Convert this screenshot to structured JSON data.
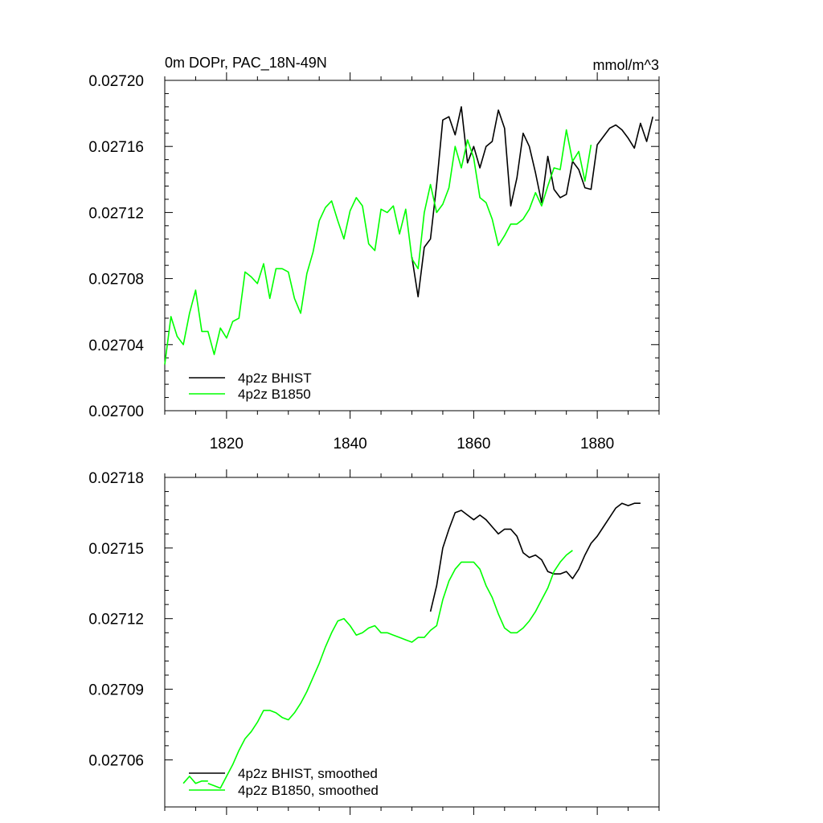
{
  "chart_data": [
    {
      "type": "line",
      "title": "0m DOPr, PAC_18N-49N",
      "units": "mmol/m^3",
      "xlim": [
        1810,
        1890
      ],
      "ylim": [
        0.027,
        0.0272
      ],
      "xticks": [
        1820,
        1840,
        1860,
        1880
      ],
      "xtick_labels": [
        "1820",
        "1840",
        "1860",
        "1880"
      ],
      "yticks": [
        0.027,
        0.02704,
        0.02708,
        0.02712,
        0.02716,
        0.0272
      ],
      "ytick_labels": [
        "0.02700",
        "0.02704",
        "0.02708",
        "0.02712",
        "0.02716",
        "0.02720"
      ],
      "legend_position": "bottom-left",
      "series": [
        {
          "name": "4p2z BHIST",
          "color": "#000000",
          "x": [
            1850,
            1851,
            1852,
            1853,
            1854,
            1855,
            1856,
            1857,
            1858,
            1859,
            1860,
            1861,
            1862,
            1863,
            1864,
            1865,
            1866,
            1867,
            1868,
            1869,
            1870,
            1871,
            1872,
            1873,
            1874,
            1875,
            1876,
            1877,
            1878,
            1879,
            1880,
            1881,
            1882,
            1883,
            1884,
            1885,
            1886,
            1887,
            1888,
            1889
          ],
          "y": [
            0.027093,
            0.027069,
            0.027099,
            0.027104,
            0.027137,
            0.027176,
            0.027178,
            0.027167,
            0.027184,
            0.02715,
            0.02716,
            0.027147,
            0.02716,
            0.027163,
            0.027182,
            0.027171,
            0.027124,
            0.027141,
            0.027168,
            0.02716,
            0.027144,
            0.027126,
            0.027154,
            0.027134,
            0.027129,
            0.027131,
            0.027151,
            0.027146,
            0.027135,
            0.027134,
            0.027161,
            0.027166,
            0.027171,
            0.027173,
            0.02717,
            0.027165,
            0.027159,
            0.027174,
            0.027163,
            0.027178
          ]
        },
        {
          "name": "4p2z B1850",
          "color": "#00ff00",
          "x": [
            1810,
            1811,
            1812,
            1813,
            1814,
            1815,
            1816,
            1817,
            1818,
            1819,
            1820,
            1821,
            1822,
            1823,
            1824,
            1825,
            1826,
            1827,
            1828,
            1829,
            1830,
            1831,
            1832,
            1833,
            1834,
            1835,
            1836,
            1837,
            1838,
            1839,
            1840,
            1841,
            1842,
            1843,
            1844,
            1845,
            1846,
            1847,
            1848,
            1849,
            1850,
            1851,
            1852,
            1853,
            1854,
            1855,
            1856,
            1857,
            1858,
            1859,
            1860,
            1861,
            1862,
            1863,
            1864,
            1865,
            1866,
            1867,
            1868,
            1869,
            1870,
            1871,
            1872,
            1873,
            1874,
            1875,
            1876,
            1877,
            1878,
            1879
          ],
          "y": [
            0.027028,
            0.027057,
            0.027045,
            0.02704,
            0.027059,
            0.027073,
            0.027048,
            0.027048,
            0.027034,
            0.02705,
            0.027044,
            0.027054,
            0.027056,
            0.027084,
            0.027081,
            0.027077,
            0.027089,
            0.027068,
            0.027086,
            0.027086,
            0.027084,
            0.027068,
            0.027059,
            0.027083,
            0.027096,
            0.027115,
            0.027123,
            0.027127,
            0.027115,
            0.027104,
            0.027121,
            0.027129,
            0.027124,
            0.027101,
            0.027097,
            0.027122,
            0.02712,
            0.027124,
            0.027107,
            0.027122,
            0.027092,
            0.027086,
            0.02712,
            0.027137,
            0.02712,
            0.027125,
            0.027135,
            0.02716,
            0.027147,
            0.027164,
            0.027153,
            0.027129,
            0.027126,
            0.027116,
            0.0271,
            0.027106,
            0.027113,
            0.027113,
            0.027116,
            0.027122,
            0.027132,
            0.027124,
            0.027136,
            0.027147,
            0.027146,
            0.02717,
            0.027151,
            0.027157,
            0.027139,
            0.027161
          ]
        }
      ]
    },
    {
      "type": "line",
      "title": "",
      "xlim": [
        1810,
        1890
      ],
      "ylim": [
        0.02704,
        0.02718
      ],
      "xticks": [
        1820,
        1840,
        1860,
        1880
      ],
      "yticks": [
        0.02706,
        0.02709,
        0.02712,
        0.02715,
        0.02718
      ],
      "ytick_labels": [
        "0.02706",
        "0.02709",
        "0.02712",
        "0.02715",
        "0.02718"
      ],
      "legend_position": "bottom-left",
      "series": [
        {
          "name": "4p2z BHIST, smoothed",
          "color": "#000000",
          "x": [
            1853,
            1854,
            1855,
            1856,
            1857,
            1858,
            1859,
            1860,
            1861,
            1862,
            1863,
            1864,
            1865,
            1866,
            1867,
            1868,
            1869,
            1870,
            1871,
            1872,
            1873,
            1874,
            1875,
            1876,
            1877,
            1878,
            1879,
            1880,
            1881,
            1882,
            1883,
            1884,
            1885,
            1886,
            1887
          ],
          "y": [
            0.027123,
            0.027134,
            0.02715,
            0.027158,
            0.027165,
            0.027166,
            0.027164,
            0.027162,
            0.027164,
            0.027162,
            0.027159,
            0.027156,
            0.027158,
            0.027158,
            0.027155,
            0.027148,
            0.027146,
            0.027147,
            0.027145,
            0.02714,
            0.027139,
            0.027139,
            0.02714,
            0.027137,
            0.027141,
            0.027147,
            0.027152,
            0.027155,
            0.027159,
            0.027163,
            0.027167,
            0.027169,
            0.027168,
            0.027169,
            0.027169
          ]
        },
        {
          "name": "4p2z B1850, smoothed",
          "color": "#00ff00",
          "x": [
            1817,
            1818,
            1819,
            1820,
            1821,
            1822,
            1823,
            1824,
            1825,
            1826,
            1827,
            1828,
            1829,
            1830,
            1831,
            1832,
            1833,
            1834,
            1835,
            1836,
            1837,
            1838,
            1839,
            1840,
            1841,
            1842,
            1843,
            1844,
            1845,
            1846,
            1847,
            1848,
            1849,
            1850,
            1851,
            1852,
            1853,
            1854,
            1855,
            1856,
            1857,
            1858,
            1859,
            1860,
            1861,
            1862,
            1863,
            1864,
            1865,
            1866,
            1867,
            1868,
            1869,
            1870,
            1871,
            1872,
            1873,
            1874,
            1875,
            1876
          ],
          "y": [
            0.02705,
            0.027049,
            0.027048,
            0.027053,
            0.027058,
            0.027064,
            0.027069,
            0.027072,
            0.027076,
            0.027081,
            0.027081,
            0.02708,
            0.027078,
            0.027077,
            0.02708,
            0.027084,
            0.027089,
            0.027095,
            0.027101,
            0.027108,
            0.027114,
            0.027119,
            0.02712,
            0.027117,
            0.027113,
            0.027114,
            0.027116,
            0.027117,
            0.027114,
            0.027114,
            0.027113,
            0.027112,
            0.027111,
            0.02711,
            0.027112,
            0.027112,
            0.027115,
            0.027117,
            0.027128,
            0.027136,
            0.027141,
            0.027144,
            0.027144,
            0.027144,
            0.027141,
            0.027134,
            0.027129,
            0.027122,
            0.027116,
            0.027114,
            0.027114,
            0.027116,
            0.027119,
            0.027123,
            0.027128,
            0.027133,
            0.02714,
            0.027144,
            0.027147,
            0.027149
          ]
        },
        {
          "name": "4p2z B1850, smoothed (start)",
          "color": "#00ff00",
          "x": [
            1813,
            1814,
            1815,
            1816,
            1817
          ],
          "y": [
            0.02705,
            0.027053,
            0.02705,
            0.027051,
            0.027051
          ]
        }
      ]
    }
  ]
}
